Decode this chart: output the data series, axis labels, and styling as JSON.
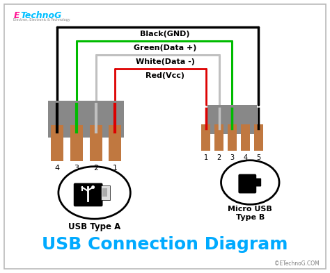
{
  "title": "USB Connection Diagram",
  "title_color": "#00AAFF",
  "title_fontsize": 18,
  "bg_color": "#FFFFFF",
  "watermark": "©ETechnoG.COM",
  "logo_e_color": "#FF1493",
  "logo_main_color": "#00BFFF",
  "wire_labels": [
    "Black(GND)",
    "Green(Data +)",
    "White(Data -)",
    "Red(Vcc)"
  ],
  "wire_colors": [
    "#000000",
    "#00BB00",
    "#C0C0C0",
    "#DD0000"
  ],
  "wire_linewidths": [
    2.5,
    2.2,
    2.2,
    2.0
  ],
  "usb_a_label": "USB Type A",
  "usb_b_label": "Micro USB\nType B",
  "connector_color": "#888888",
  "pin_color": "#C07840",
  "pin_a_labels": [
    "4",
    "3",
    "2",
    "1"
  ],
  "pin_b_labels": [
    "1",
    "2",
    "3",
    "4",
    "5"
  ]
}
